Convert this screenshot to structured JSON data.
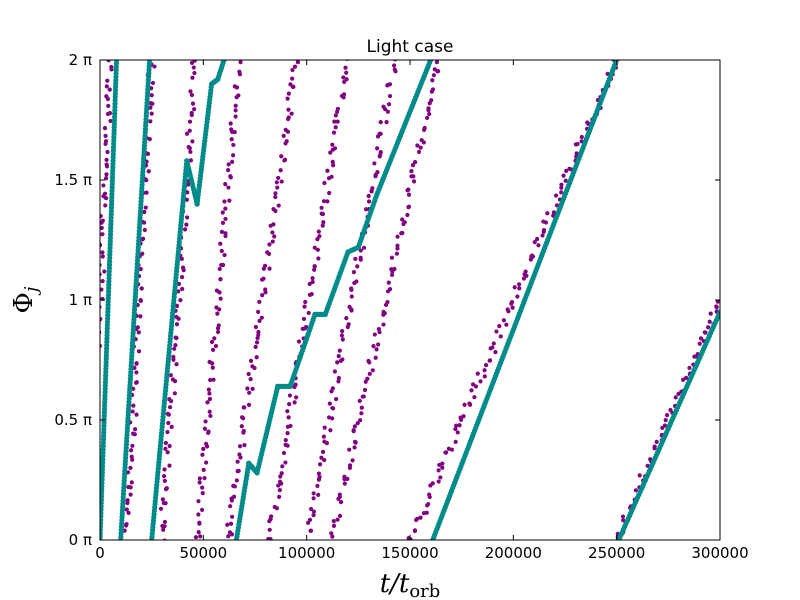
{
  "chart_data": {
    "type": "scatter",
    "title": "Light case",
    "xlabel": {
      "main": "t/t",
      "sub": "orb"
    },
    "ylabel": {
      "main": "Φ",
      "sub": "j"
    },
    "xlim": [
      0,
      300000
    ],
    "ylim": [
      0,
      2
    ],
    "x_ticks": [
      {
        "value": 0,
        "label": "0"
      },
      {
        "value": 50000,
        "label": "50000"
      },
      {
        "value": 100000,
        "label": "100000"
      },
      {
        "value": 150000,
        "label": "150000"
      },
      {
        "value": 200000,
        "label": "200000"
      },
      {
        "value": 250000,
        "label": "250000"
      },
      {
        "value": 300000,
        "label": "300000"
      }
    ],
    "y_ticks": [
      {
        "value": 0,
        "label": "0 π"
      },
      {
        "value": 0.5,
        "label": "0.5 π"
      },
      {
        "value": 1,
        "label": "1 π"
      },
      {
        "value": 1.5,
        "label": "1.5 π"
      },
      {
        "value": 2,
        "label": "2 π"
      }
    ],
    "grid": false,
    "series": [
      {
        "color": "#800080",
        "marker": "dot",
        "note_segments": [
          {
            "x0": -5000,
            "x1": 5000,
            "y0": 0,
            "y1": 2
          },
          {
            "x0": 13000,
            "x1": 25000,
            "y0": 0,
            "y1": 2
          },
          {
            "x0": 30000,
            "x1": 46000,
            "y0": 0,
            "y1": 2
          },
          {
            "x0": 47000,
            "x1": 67000,
            "y0": 0,
            "y1": 2
          },
          {
            "x0": 62000,
            "x1": 95000,
            "y0": 0,
            "y1": 2
          },
          {
            "x0": 82000,
            "x1": 120000,
            "y0": 0,
            "y1": 2
          },
          {
            "x0": 100000,
            "x1": 143000,
            "y0": 0,
            "y1": 2
          },
          {
            "x0": 112000,
            "x1": 164000,
            "y0": 0,
            "y1": 2
          },
          {
            "x0": 150000,
            "x1": 250000,
            "y0": 0,
            "y1": 2
          },
          {
            "x0": 250000,
            "x1": 300000,
            "y0": 0,
            "y1": 1.0
          }
        ]
      },
      {
        "color": "#008b8b",
        "marker": "dot",
        "note_segments": [
          {
            "x0": 0,
            "x1": 8000,
            "y0": 0,
            "y1": 2
          },
          {
            "x0": 10000,
            "x1": 24000,
            "y0": 0,
            "y1": 2
          },
          {
            "x0": 25000,
            "x1": 42000,
            "y0": 0,
            "y1": 1.58
          },
          {
            "x0": 42000,
            "x1": 47000,
            "y0": 1.58,
            "y1": 1.4
          },
          {
            "x0": 47000,
            "x1": 54000,
            "y0": 1.4,
            "y1": 1.9
          },
          {
            "x0": 54000,
            "x1": 57000,
            "y0": 1.9,
            "y1": 1.92
          },
          {
            "x0": 57000,
            "x1": 60000,
            "y0": 1.92,
            "y1": 2
          },
          {
            "x0": 66000,
            "x1": 72000,
            "y0": 0,
            "y1": 0.32
          },
          {
            "x0": 72000,
            "x1": 76000,
            "y0": 0.32,
            "y1": 0.28
          },
          {
            "x0": 76000,
            "x1": 86000,
            "y0": 0.28,
            "y1": 0.64
          },
          {
            "x0": 86000,
            "x1": 92000,
            "y0": 0.64,
            "y1": 0.64
          },
          {
            "x0": 92000,
            "x1": 104000,
            "y0": 0.64,
            "y1": 0.94
          },
          {
            "x0": 104000,
            "x1": 109000,
            "y0": 0.94,
            "y1": 0.94
          },
          {
            "x0": 109000,
            "x1": 120000,
            "y0": 0.94,
            "y1": 1.2
          },
          {
            "x0": 120000,
            "x1": 125000,
            "y0": 1.2,
            "y1": 1.22
          },
          {
            "x0": 125000,
            "x1": 134000,
            "y0": 1.22,
            "y1": 1.44
          },
          {
            "x0": 134000,
            "x1": 160000,
            "y0": 1.44,
            "y1": 2
          },
          {
            "x0": 161000,
            "x1": 250000,
            "y0": 0,
            "y1": 2
          },
          {
            "x0": 251000,
            "x1": 300000,
            "y0": 0,
            "y1": 0.95
          }
        ]
      }
    ]
  }
}
